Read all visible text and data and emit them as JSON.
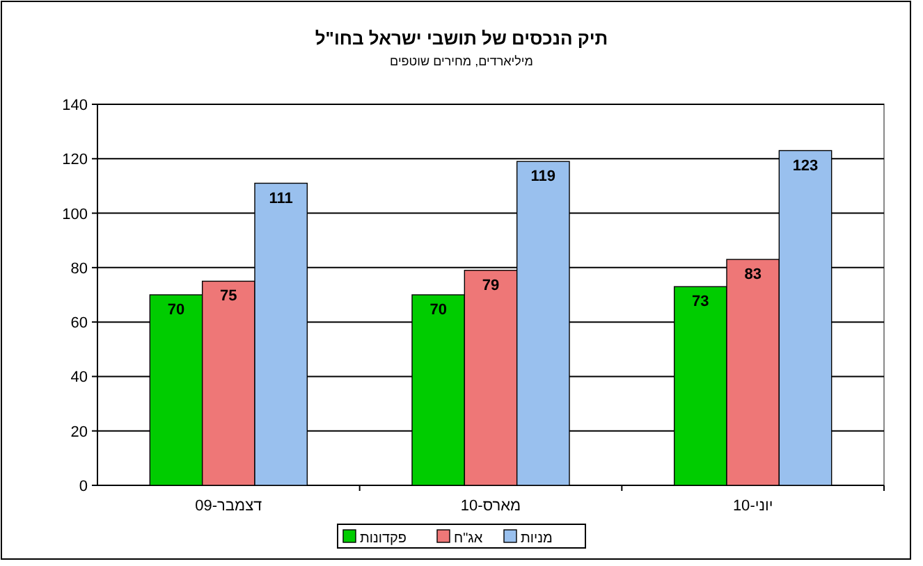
{
  "chart_data": {
    "type": "bar",
    "title": "תיק הנכסים של תושבי ישראל בחו\"ל",
    "subtitle": "מיליארדים, מחירים שוטפים",
    "categories": [
      "דצמבר-09",
      "מארס-10",
      "יוני-10"
    ],
    "series": [
      {
        "name": "פקדונות",
        "color": "#00cc00",
        "values": [
          70,
          70,
          73
        ]
      },
      {
        "name": "אג\"ח",
        "color": "#ee7777",
        "values": [
          75,
          79,
          83
        ]
      },
      {
        "name": "מניות",
        "color": "#99c0ee",
        "values": [
          111,
          119,
          123
        ]
      }
    ],
    "ylim": [
      0,
      140
    ],
    "yticks": [
      0,
      20,
      40,
      60,
      80,
      100,
      120,
      140
    ],
    "grid": "y",
    "legend": "bottom",
    "data_labels": true
  }
}
